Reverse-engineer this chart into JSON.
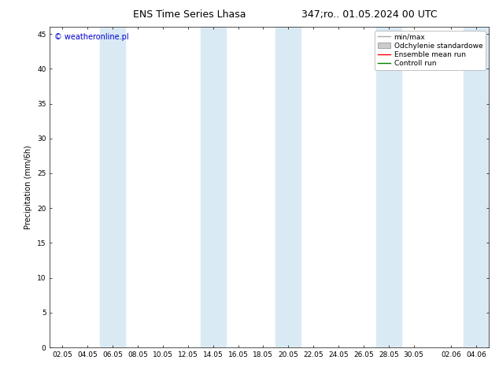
{
  "title": "ENS Time Series Lhasa",
  "title2": "347;ro.. 01.05.2024 00 UTC",
  "ylabel": "Precipitation (mm/6h)",
  "ylim": [
    0,
    46
  ],
  "yticks": [
    0,
    5,
    10,
    15,
    20,
    25,
    30,
    35,
    40,
    45
  ],
  "xtick_labels": [
    "02.05",
    "04.05",
    "06.05",
    "08.05",
    "10.05",
    "12.05",
    "14.05",
    "16.05",
    "18.05",
    "20.05",
    "22.05",
    "24.05",
    "26.05",
    "28.05",
    "30.05",
    "02.06",
    "04.06"
  ],
  "xtick_positions": [
    0,
    2,
    4,
    6,
    8,
    10,
    12,
    14,
    16,
    18,
    20,
    22,
    24,
    26,
    28,
    31,
    33
  ],
  "blue_bands": [
    [
      3,
      5
    ],
    [
      11,
      13
    ],
    [
      17,
      19
    ],
    [
      25,
      27
    ],
    [
      32,
      34
    ]
  ],
  "band_color": "#daeaf5",
  "background_color": "#ffffff",
  "watermark": "© weatheronline.pl",
  "watermark_color": "#0000cc",
  "legend_items": [
    {
      "label": "min/max",
      "color": "#aaaaaa",
      "type": "line"
    },
    {
      "label": "Odchylenie standardowe",
      "color": "#cccccc",
      "type": "rect"
    },
    {
      "label": "Ensemble mean run",
      "color": "#ff0000",
      "type": "line"
    },
    {
      "label": "Controll run",
      "color": "#008000",
      "type": "line"
    }
  ],
  "title_fontsize": 9,
  "axis_fontsize": 7,
  "tick_fontsize": 6.5,
  "legend_fontsize": 6.5,
  "watermark_fontsize": 7
}
